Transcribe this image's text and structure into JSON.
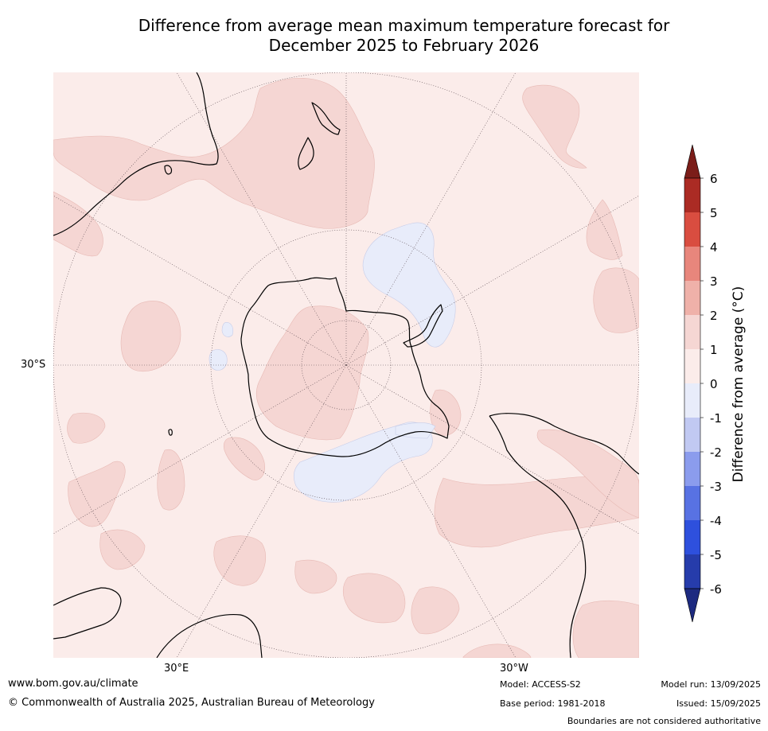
{
  "title": {
    "line1": "Difference from average mean maximum temperature forecast for",
    "line2": "December 2025 to February 2026"
  },
  "map": {
    "projection": "south-polar-stereographic",
    "ocean_color": "#fbecea",
    "lat_label": "30°S",
    "lon_labels": [
      "30°E",
      "30°W"
    ]
  },
  "colorbar": {
    "title": "Difference from average (°C)",
    "ticks": [
      "6",
      "5",
      "4",
      "3",
      "2",
      "1",
      "0",
      "-1",
      "-2",
      "-3",
      "-4",
      "-5",
      "-6"
    ],
    "colors": {
      "over": "#7b1d19",
      "b6": "#ab2b24",
      "b5": "#d94d40",
      "b4": "#e8867c",
      "b3": "#efb1a9",
      "b2": "#f5d6d3",
      "b1": "#fbecea",
      "bm1": "#e8ecfa",
      "bm2": "#c1c9f2",
      "bm3": "#8b9ced",
      "bm4": "#5872e3",
      "bm5": "#2e50dd",
      "bm6": "#263cab",
      "under": "#1d2a80"
    }
  },
  "footer": {
    "url": "www.bom.gov.au/climate",
    "copyright": "© Commonwealth of Australia 2025, Australian Bureau of Meteorology",
    "model": "Model: ACCESS-S2",
    "base_period": "Base period: 1981-2018",
    "model_run": "Model run: 13/09/2025",
    "issued": "Issued: 15/09/2025",
    "disclaimer": "Boundaries are not considered authoritative"
  }
}
